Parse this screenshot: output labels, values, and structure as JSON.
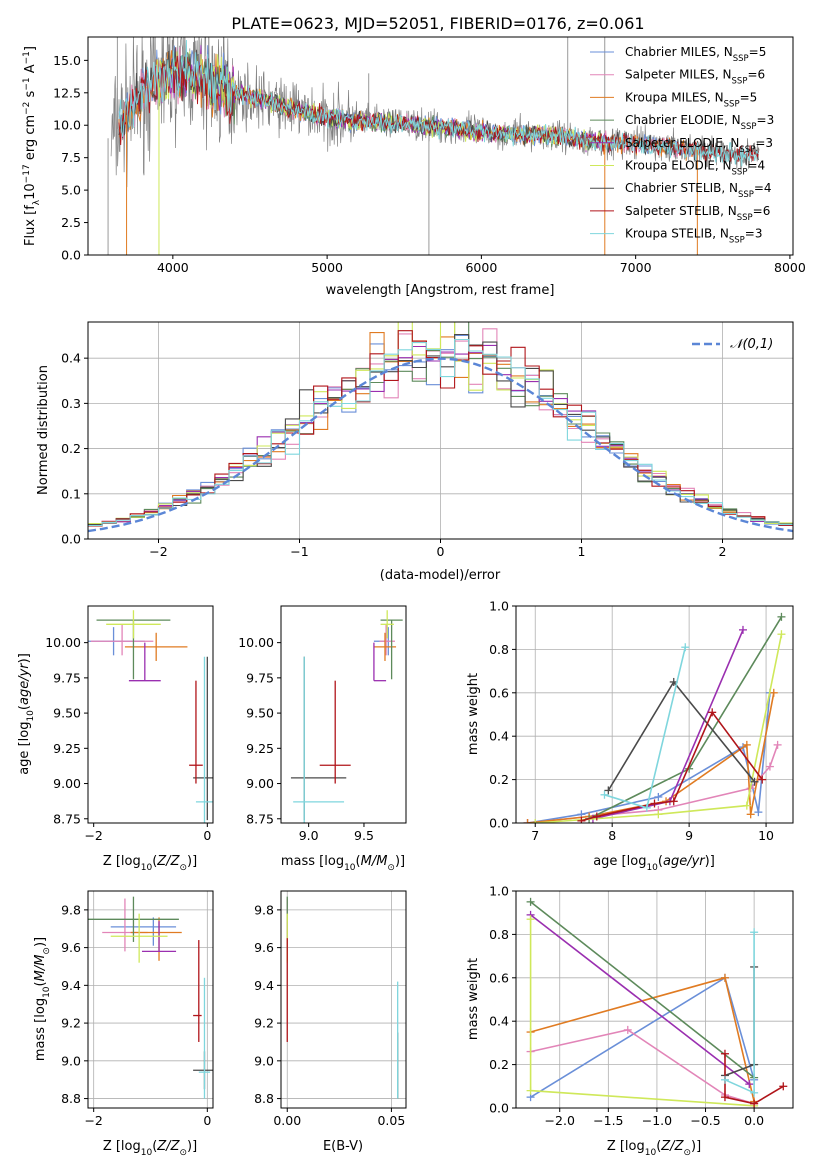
{
  "figure": {
    "title": "PLATE=0623, MJD=52051, FIBERID=0176, z=0.061"
  },
  "colors": {
    "chabrier_miles": "#6a8fd8",
    "salpeter_miles": "#e285b8",
    "kroupa_miles": "#e07b22",
    "chabrier_elodie": "#5d8a5b",
    "salpeter_elodie": "#9a2fb0",
    "kroupa_elodie": "#cfe85a",
    "chabrier_stelib": "#4a4a4a",
    "salpeter_stelib": "#b0151a",
    "kroupa_stelib": "#7fd6dd",
    "data": "#808080"
  },
  "chart_data": [
    {
      "id": "spectrum",
      "type": "line",
      "xlabel": "wavelength [Angstrom, rest frame]",
      "ylabel": "Flux [f_λ 10^-17 erg cm^-2 s^-1 A^-1]",
      "xlim": [
        3450,
        8020
      ],
      "ylim": [
        0,
        16.8
      ],
      "xticks": [
        4000,
        5000,
        6000,
        7000,
        8000
      ],
      "yticks": [
        0.0,
        2.5,
        5.0,
        7.5,
        10.0,
        12.5,
        15.0
      ],
      "ytick_labels": [
        "0.0",
        "2.5",
        "5.0",
        "7.5",
        "10.0",
        "12.5",
        "15.0"
      ],
      "legend_placement": "right",
      "legend": [
        {
          "main": "Chabrier MILES, N",
          "sub": "SSP",
          "tail": "=5",
          "color": "#6a8fd8"
        },
        {
          "main": "Salpeter MILES, N",
          "sub": "SSP",
          "tail": "=6",
          "color": "#e285b8"
        },
        {
          "main": "Kroupa MILES, N",
          "sub": "SSP",
          "tail": "=5",
          "color": "#e07b22"
        },
        {
          "main": "Chabrier ELODIE, N",
          "sub": "SSP",
          "tail": "=3",
          "color": "#5d8a5b"
        },
        {
          "main": "Salpeter ELODIE, N",
          "sub": "SSP",
          "tail": "=3",
          "color": "#9a2fb0"
        },
        {
          "main": "Kroupa ELODIE, N",
          "sub": "SSP",
          "tail": "=4",
          "color": "#cfe85a"
        },
        {
          "main": "Chabrier STELIB, N",
          "sub": "SSP",
          "tail": "=4",
          "color": "#4a4a4a"
        },
        {
          "main": "Salpeter STELIB, N",
          "sub": "SSP",
          "tail": "=6",
          "color": "#b0151a"
        },
        {
          "main": "Kroupa STELIB, N",
          "sub": "SSP",
          "tail": "=3",
          "color": "#7fd6dd"
        }
      ],
      "continuum": {
        "x": [
          3600,
          3700,
          3800,
          3900,
          4000,
          4100,
          4200,
          4400,
          4600,
          4800,
          5000,
          5200,
          5400,
          5600,
          5800,
          6000,
          6200,
          6400,
          6600,
          6800,
          7000,
          7200,
          7400,
          7600,
          7800
        ],
        "y": [
          9.0,
          10.8,
          12.2,
          13.5,
          14.2,
          14.0,
          13.6,
          12.5,
          11.9,
          11.2,
          10.6,
          10.3,
          10.2,
          10.0,
          9.8,
          9.5,
          9.3,
          9.3,
          9.0,
          8.7,
          8.6,
          8.3,
          8.1,
          7.8,
          7.7
        ]
      }
    },
    {
      "id": "residual-histogram",
      "type": "line",
      "xlabel": "(data-model)/error",
      "ylabel": "Normed distribution",
      "xlim": [
        -2.5,
        2.5
      ],
      "ylim": [
        0,
        0.48
      ],
      "xticks": [
        -2,
        -1,
        0,
        1,
        2
      ],
      "xtick_labels": [
        "−2",
        "−1",
        "0",
        "1",
        "2"
      ],
      "yticks": [
        0.0,
        0.1,
        0.2,
        0.3,
        0.4
      ],
      "ytick_labels": [
        "0.0",
        "0.1",
        "0.2",
        "0.3",
        "0.4"
      ],
      "legend_placement": "top-right",
      "reference": {
        "name": "𝒩(0,1)",
        "mean": 0,
        "sigma": 1,
        "color": "#5b86d6"
      },
      "bins": {
        "start": -2.5,
        "width": 0.1,
        "count": 50
      }
    },
    {
      "id": "age-vs-Z",
      "type": "scatter",
      "xlabel": "Z [log10(Z/Z⊙)]",
      "ylabel": "age [log10(age/yr)]",
      "xlim": [
        -2.1,
        0.1
      ],
      "ylim": [
        8.72,
        10.26
      ],
      "xticks": [
        -2,
        0
      ],
      "xtick_labels": [
        "−2",
        "0"
      ],
      "yticks": [
        8.75,
        9.0,
        9.25,
        9.5,
        9.75,
        10.0
      ],
      "ytick_labels": [
        "8.75",
        "9.00",
        "9.25",
        "9.50",
        "9.75",
        "10.00"
      ],
      "points": [
        {
          "x": -1.65,
          "y": 10.01,
          "xerr": [
            0.55,
            0.55
          ],
          "yerr": [
            0.1,
            0.1
          ],
          "color": "#6a8fd8"
        },
        {
          "x": -1.5,
          "y": 10.01,
          "xerr": [
            0.55,
            0.55
          ],
          "yerr": [
            0.1,
            0.12
          ],
          "color": "#e285b8"
        },
        {
          "x": -0.9,
          "y": 9.97,
          "xerr": [
            0.55,
            0.55
          ],
          "yerr": [
            0.1,
            0.1
          ],
          "color": "#e07b22"
        },
        {
          "x": -1.3,
          "y": 10.16,
          "xerr": [
            0.65,
            0.65
          ],
          "yerr": [
            0.42,
            0.0
          ],
          "color": "#5d8a5b"
        },
        {
          "x": -1.1,
          "y": 9.73,
          "xerr": [
            0.28,
            0.28
          ],
          "yerr": [
            0.0,
            0.27
          ],
          "color": "#9a2fb0"
        },
        {
          "x": -1.3,
          "y": 10.13,
          "xerr": [
            0.48,
            0.48
          ],
          "yerr": [
            0.1,
            0.1
          ],
          "color": "#cfe85a"
        },
        {
          "x": 0.0,
          "y": 9.04,
          "xerr": [
            0.25,
            0.15
          ],
          "yerr": [
            0.3,
            0.86
          ],
          "color": "#4a4a4a"
        },
        {
          "x": -0.2,
          "y": 9.13,
          "xerr": [
            0.12,
            0.12
          ],
          "yerr": [
            0.13,
            0.6
          ],
          "color": "#b0151a"
        },
        {
          "x": -0.05,
          "y": 8.87,
          "xerr": [
            0.15,
            0.15
          ],
          "yerr": [
            0.15,
            1.03
          ],
          "color": "#7fd6dd"
        }
      ]
    },
    {
      "id": "age-vs-mass",
      "type": "scatter",
      "xlabel": "mass [log10(M/M⊙)]",
      "ylabel": "",
      "xlim": [
        8.75,
        9.88
      ],
      "ylim": [
        8.72,
        10.26
      ],
      "xticks": [
        9.0,
        9.5
      ],
      "xtick_labels": [
        "9.0",
        "9.5"
      ],
      "yticks": [
        8.75,
        9.0,
        9.25,
        9.5,
        9.75,
        10.0
      ],
      "ytick_labels": [
        "8.75",
        "9.00",
        "9.25",
        "9.50",
        "9.75",
        "10.00"
      ],
      "points": [
        {
          "x": 9.72,
          "y": 10.01,
          "xerr": [
            0.13,
            0.0
          ],
          "yerr": [
            0.1,
            0.1
          ],
          "color": "#6a8fd8"
        },
        {
          "x": 9.7,
          "y": 10.01,
          "xerr": [
            0.06,
            0.08
          ],
          "yerr": [
            0.1,
            0.12
          ],
          "color": "#e285b8"
        },
        {
          "x": 9.69,
          "y": 9.97,
          "xerr": [
            0.1,
            0.1
          ],
          "yerr": [
            0.1,
            0.1
          ],
          "color": "#e07b22"
        },
        {
          "x": 9.75,
          "y": 10.16,
          "xerr": [
            0.1,
            0.1
          ],
          "yerr": [
            0.42,
            0.0
          ],
          "color": "#5d8a5b"
        },
        {
          "x": 9.59,
          "y": 9.73,
          "xerr": [
            0.0,
            0.11
          ],
          "yerr": [
            0.0,
            0.27
          ],
          "color": "#9a2fb0"
        },
        {
          "x": 9.71,
          "y": 10.13,
          "xerr": [
            0.06,
            0.06
          ],
          "yerr": [
            0.1,
            0.1
          ],
          "color": "#cfe85a"
        },
        {
          "x": 8.96,
          "y": 9.04,
          "xerr": [
            0.12,
            0.38
          ],
          "yerr": [
            0.3,
            0.86
          ],
          "color": "#4a4a4a"
        },
        {
          "x": 9.24,
          "y": 9.13,
          "xerr": [
            0.14,
            0.14
          ],
          "yerr": [
            0.13,
            0.6
          ],
          "color": "#b0151a"
        },
        {
          "x": 8.96,
          "y": 8.87,
          "xerr": [
            0.1,
            0.36
          ],
          "yerr": [
            0.15,
            1.03
          ],
          "color": "#7fd6dd"
        }
      ]
    },
    {
      "id": "mass-weight-vs-age",
      "type": "line",
      "xlabel": "age [log10(age/yr)]",
      "ylabel": "mass weight",
      "xlim": [
        6.75,
        10.35
      ],
      "ylim": [
        0,
        1.0
      ],
      "xticks": [
        7,
        8,
        9,
        10
      ],
      "xtick_labels": [
        "7",
        "8",
        "9",
        "10"
      ],
      "yticks": [
        0.0,
        0.2,
        0.4,
        0.6,
        0.8,
        1.0
      ],
      "ytick_labels": [
        "0.0",
        "0.2",
        "0.4",
        "0.6",
        "0.8",
        "1.0"
      ],
      "series": [
        {
          "color": "#6a8fd8",
          "x": [
            6.9,
            7.6,
            8.6,
            9.7,
            9.9,
            10.05
          ],
          "y": [
            0.0,
            0.04,
            0.12,
            0.35,
            0.05,
            0.6
          ]
        },
        {
          "color": "#e285b8",
          "x": [
            6.9,
            7.7,
            8.6,
            9.8,
            10.05,
            10.15
          ],
          "y": [
            0.0,
            0.03,
            0.06,
            0.16,
            0.26,
            0.36
          ]
        },
        {
          "color": "#e07b22",
          "x": [
            6.9,
            7.7,
            8.7,
            9.75,
            9.8,
            10.1
          ],
          "y": [
            0.0,
            0.03,
            0.1,
            0.36,
            0.04,
            0.6
          ]
        },
        {
          "color": "#5d8a5b",
          "x": [
            7.7,
            9.0,
            10.2
          ],
          "y": [
            0.02,
            0.25,
            0.95
          ]
        },
        {
          "color": "#9a2fb0",
          "x": [
            7.75,
            8.75,
            9.7
          ],
          "y": [
            0.02,
            0.1,
            0.89
          ]
        },
        {
          "color": "#cfe85a",
          "x": [
            7.0,
            8.6,
            9.75,
            10.2
          ],
          "y": [
            0.0,
            0.04,
            0.08,
            0.87
          ]
        },
        {
          "color": "#4a4a4a",
          "x": [
            7.95,
            8.8,
            9.85
          ],
          "y": [
            0.15,
            0.65,
            0.19
          ]
        },
        {
          "color": "#b0151a",
          "x": [
            7.6,
            7.8,
            8.55,
            8.8,
            9.3,
            9.95
          ],
          "y": [
            0.01,
            0.03,
            0.09,
            0.1,
            0.51,
            0.2
          ]
        },
        {
          "color": "#7fd6dd",
          "x": [
            7.9,
            8.45,
            8.95
          ],
          "y": [
            0.13,
            0.07,
            0.81
          ]
        }
      ]
    },
    {
      "id": "mass-vs-Z",
      "type": "scatter",
      "xlabel": "Z [log10(Z/Z⊙)]",
      "ylabel": "mass [log10(M/M⊙)]",
      "xlim": [
        -2.1,
        0.1
      ],
      "ylim": [
        8.75,
        9.9
      ],
      "xticks": [
        -2,
        0
      ],
      "xtick_labels": [
        "−2",
        "0"
      ],
      "yticks": [
        8.8,
        9.0,
        9.2,
        9.4,
        9.6,
        9.8
      ],
      "ytick_labels": [
        "8.8",
        "9.0",
        "9.2",
        "9.4",
        "9.6",
        "9.8"
      ],
      "points": [
        {
          "x": -0.95,
          "y": 9.71,
          "xerr": [
            0.75,
            0.4
          ],
          "yerr": [
            0.1,
            0.05
          ],
          "color": "#6a8fd8"
        },
        {
          "x": -1.45,
          "y": 9.68,
          "xerr": [
            0.4,
            0.4
          ],
          "yerr": [
            0.1,
            0.18
          ],
          "color": "#e285b8"
        },
        {
          "x": -0.85,
          "y": 9.68,
          "xerr": [
            0.5,
            0.4
          ],
          "yerr": [
            0.15,
            0.08
          ],
          "color": "#e07b22"
        },
        {
          "x": -1.3,
          "y": 9.75,
          "xerr": [
            0.8,
            0.8
          ],
          "yerr": [
            0.12,
            0.12
          ],
          "color": "#5d8a5b"
        },
        {
          "x": -0.85,
          "y": 9.58,
          "xerr": [
            0.3,
            0.3
          ],
          "yerr": [
            0.0,
            0.16
          ],
          "color": "#9a2fb0"
        },
        {
          "x": -1.2,
          "y": 9.66,
          "xerr": [
            0.5,
            0.5
          ],
          "yerr": [
            0.14,
            0.12
          ],
          "color": "#cfe85a"
        },
        {
          "x": -0.05,
          "y": 8.95,
          "xerr": [
            0.2,
            0.2
          ],
          "yerr": [
            0.1,
            0.1
          ],
          "color": "#4a4a4a"
        },
        {
          "x": -0.15,
          "y": 9.24,
          "xerr": [
            0.1,
            0.05
          ],
          "yerr": [
            0.14,
            0.4
          ],
          "color": "#b0151a"
        },
        {
          "x": -0.05,
          "y": 8.94,
          "xerr": [
            0.1,
            0.1
          ],
          "yerr": [
            0.14,
            0.5
          ],
          "color": "#7fd6dd"
        }
      ]
    },
    {
      "id": "mass-vs-EBV",
      "type": "scatter",
      "xlabel": "E(B-V)",
      "ylabel": "",
      "xlim": [
        -0.003,
        0.057
      ],
      "ylim": [
        8.75,
        9.9
      ],
      "xticks": [
        0.0,
        0.05
      ],
      "xtick_labels": [
        "0.00",
        "0.05"
      ],
      "yticks": [
        8.8,
        9.0,
        9.2,
        9.4,
        9.6,
        9.8
      ],
      "ytick_labels": [
        "8.8",
        "9.0",
        "9.2",
        "9.4",
        "9.6",
        "9.8"
      ],
      "points": [
        {
          "x": 0.0,
          "y": 9.71,
          "yerr": [
            0.1,
            0.05
          ],
          "color": "#6a8fd8"
        },
        {
          "x": 0.0,
          "y": 9.68,
          "yerr": [
            0.1,
            0.18
          ],
          "color": "#e285b8"
        },
        {
          "x": 0.0,
          "y": 9.68,
          "yerr": [
            0.15,
            0.08
          ],
          "color": "#e07b22"
        },
        {
          "x": 0.0,
          "y": 9.75,
          "yerr": [
            0.12,
            0.12
          ],
          "color": "#5d8a5b"
        },
        {
          "x": 0.0,
          "y": 9.58,
          "yerr": [
            0.0,
            0.16
          ],
          "color": "#9a2fb0"
        },
        {
          "x": 0.0,
          "y": 9.66,
          "yerr": [
            0.14,
            0.12
          ],
          "color": "#cfe85a"
        },
        {
          "x": 0.053,
          "y": 8.95,
          "yerr": [
            0.15,
            0.2
          ],
          "color": "#4a4a4a"
        },
        {
          "x": 0.0,
          "y": 9.4,
          "yerr": [
            0.3,
            0.25
          ],
          "color": "#b0151a"
        },
        {
          "x": 0.053,
          "y": 9.0,
          "yerr": [
            0.2,
            0.42
          ],
          "color": "#7fd6dd"
        }
      ]
    },
    {
      "id": "mass-weight-vs-Z",
      "type": "line",
      "xlabel": "Z [log10(Z/Z⊙)]",
      "ylabel": "mass weight",
      "xlim": [
        -2.45,
        0.4
      ],
      "ylim": [
        0,
        1.0
      ],
      "xticks": [
        -2.0,
        -1.5,
        -1.0,
        -0.5,
        0.0
      ],
      "xtick_labels": [
        "−2.0",
        "−1.5",
        "−1.0",
        "−0.5",
        "0.0"
      ],
      "yticks": [
        0.0,
        0.2,
        0.4,
        0.6,
        0.8,
        1.0
      ],
      "ytick_labels": [
        "0.0",
        "0.2",
        "0.4",
        "0.6",
        "0.8",
        "1.0"
      ],
      "series": [
        {
          "color": "#6a8fd8",
          "x": [
            -2.3,
            -0.3,
            0.0
          ],
          "y": [
            0.05,
            0.6,
            0.13
          ]
        },
        {
          "color": "#e285b8",
          "x": [
            -2.3,
            -1.3,
            -0.3,
            0.0
          ],
          "y": [
            0.26,
            0.36,
            0.06,
            0.02
          ]
        },
        {
          "color": "#e07b22",
          "x": [
            -2.3,
            -0.3,
            0.0
          ],
          "y": [
            0.35,
            0.6,
            0.03
          ]
        },
        {
          "color": "#5d8a5b",
          "x": [
            -2.3,
            0.0
          ],
          "y": [
            0.95,
            0.14
          ]
        },
        {
          "color": "#9a2fb0",
          "x": [
            -2.3,
            -0.05
          ],
          "y": [
            0.89,
            0.11
          ]
        },
        {
          "color": "#cfe85a",
          "x": [
            -2.3,
            -2.3,
            0.0
          ],
          "y": [
            0.87,
            0.08,
            0.01
          ]
        },
        {
          "color": "#4a4a4a",
          "x": [
            0.0,
            0.0,
            -0.3
          ],
          "y": [
            0.65,
            0.2,
            0.15
          ]
        },
        {
          "color": "#b0151a",
          "x": [
            -0.3,
            -0.3,
            0.0,
            0.3
          ],
          "y": [
            0.25,
            0.05,
            0.02,
            0.1
          ]
        },
        {
          "color": "#7fd6dd",
          "x": [
            0.0,
            0.0,
            -0.3
          ],
          "y": [
            0.81,
            0.07,
            0.13
          ]
        }
      ]
    }
  ]
}
